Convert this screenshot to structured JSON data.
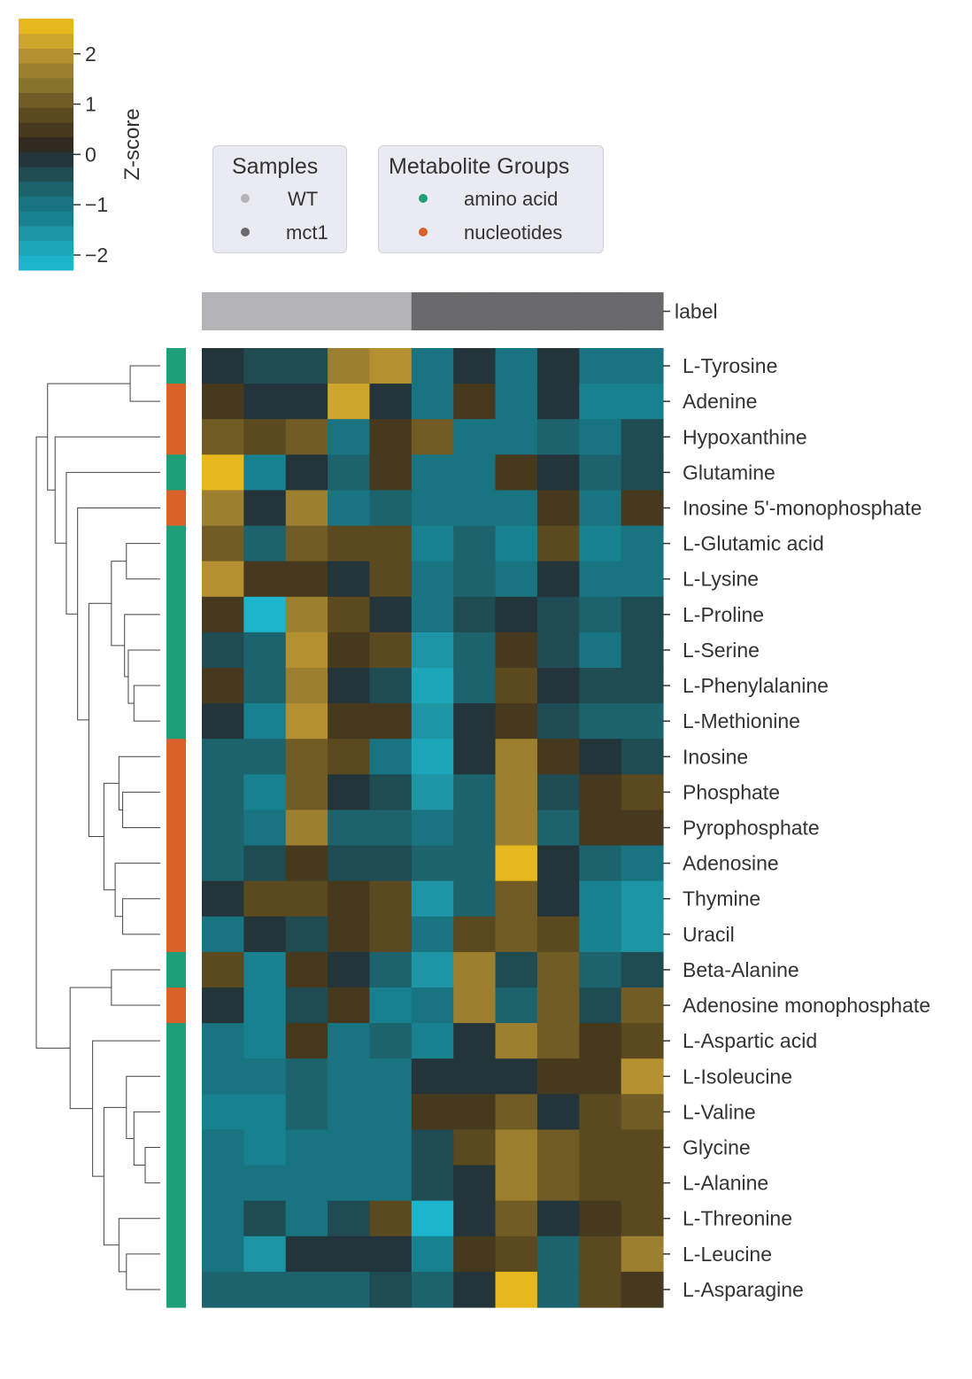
{
  "chart_data": {
    "type": "heatmap",
    "colorbar": {
      "label": "Z-score",
      "ticks": [
        2,
        1,
        0,
        -1,
        -2
      ],
      "tick_labels": [
        "2",
        "1",
        "0",
        "−1",
        "−2"
      ],
      "range": [
        -2.3,
        2.7
      ],
      "colors": [
        "#1cb3cd",
        "#1da5ba",
        "#1e95a4",
        "#17818f",
        "#177480",
        "#1c636d",
        "#1f4b52",
        "#23353b",
        "#312a21",
        "#46391e",
        "#5b4920",
        "#715c25",
        "#89722b",
        "#9c8030",
        "#b49030",
        "#cea62c",
        "#e7b81e"
      ]
    },
    "label_bar": {
      "label": "label",
      "sample_groups": [
        "WT",
        "WT",
        "WT",
        "WT",
        "WT",
        "mct1",
        "mct1",
        "mct1",
        "mct1",
        "mct1",
        "mct1"
      ]
    },
    "legend_samples": {
      "title": "Samples",
      "entries": [
        {
          "label": "WT",
          "color": "#b4b4b6"
        },
        {
          "label": "mct1",
          "color": "#69696b"
        }
      ]
    },
    "legend_groups": {
      "title": "Metabolite Groups",
      "entries": [
        {
          "label": "amino acid",
          "color": "#1f9e7a"
        },
        {
          "label": "nucleotides",
          "color": "#d9622b"
        }
      ]
    },
    "rows": [
      "L-Tyrosine",
      "Adenine",
      "Hypoxanthine",
      "Glutamine",
      "Inosine 5'-monophosphate",
      "L-Glutamic acid",
      "L-Lysine",
      "L-Proline",
      "L-Serine",
      "L-Phenylalanine",
      "L-Methionine",
      "Inosine",
      "Phosphate",
      "Pyrophosphate",
      "Adenosine",
      "Thymine",
      "Uracil",
      "Beta-Alanine",
      "Adenosine monophosphate",
      "L-Aspartic acid",
      "L-Isoleucine",
      "L-Valine",
      "Glycine",
      "L-Alanine",
      "L-Threonine",
      "L-Leucine",
      "L-Asparagine"
    ],
    "row_groups": [
      "amino acid",
      "nucleotides",
      "nucleotides",
      "amino acid",
      "nucleotides",
      "amino acid",
      "amino acid",
      "amino acid",
      "amino acid",
      "amino acid",
      "amino acid",
      "nucleotides",
      "nucleotides",
      "nucleotides",
      "nucleotides",
      "nucleotides",
      "nucleotides",
      "amino acid",
      "nucleotides",
      "amino acid",
      "amino acid",
      "amino acid",
      "amino acid",
      "amino acid",
      "amino acid",
      "amino acid",
      "amino acid"
    ],
    "values": [
      [
        0.0,
        -0.3,
        -0.3,
        1.6,
        2.1,
        -0.9,
        0.0,
        -0.9,
        0.0,
        -0.9,
        -0.9
      ],
      [
        0.5,
        0.0,
        0.0,
        2.2,
        0.0,
        -0.9,
        0.5,
        -0.9,
        0.0,
        -1.2,
        -1.2
      ],
      [
        1.2,
        0.8,
        1.2,
        -0.9,
        0.5,
        1.2,
        -0.9,
        -0.9,
        -0.6,
        -0.9,
        -0.3
      ],
      [
        2.6,
        -1.2,
        0.0,
        -0.6,
        0.5,
        -0.9,
        -0.9,
        0.5,
        0.0,
        -0.6,
        -0.3
      ],
      [
        1.8,
        0.0,
        1.6,
        -0.9,
        -0.6,
        -0.9,
        -0.9,
        -0.9,
        0.5,
        -0.9,
        0.5
      ],
      [
        1.2,
        -0.6,
        1.2,
        0.8,
        0.8,
        -1.2,
        -0.6,
        -1.2,
        0.8,
        -1.2,
        -0.9
      ],
      [
        2.1,
        0.5,
        0.5,
        0.0,
        0.8,
        -0.9,
        -0.6,
        -0.9,
        0.0,
        -0.9,
        -0.9
      ],
      [
        0.5,
        -2.1,
        1.8,
        0.8,
        0.0,
        -0.9,
        -0.3,
        0.0,
        -0.3,
        -0.6,
        -0.3
      ],
      [
        -0.3,
        -0.6,
        2.1,
        0.5,
        0.8,
        -1.5,
        -0.6,
        0.5,
        -0.3,
        -0.9,
        -0.3
      ],
      [
        0.5,
        -0.6,
        1.8,
        0.0,
        -0.3,
        -1.9,
        -0.6,
        0.8,
        0.0,
        -0.3,
        -0.3
      ],
      [
        0.0,
        -1.2,
        2.1,
        0.5,
        0.5,
        -1.5,
        0.0,
        0.5,
        -0.3,
        -0.6,
        -0.6
      ],
      [
        -0.6,
        -0.6,
        1.2,
        0.8,
        -0.9,
        -1.9,
        0.0,
        1.6,
        0.5,
        0.0,
        -0.3
      ],
      [
        -0.6,
        -1.2,
        1.2,
        0.0,
        -0.3,
        -1.5,
        -0.6,
        1.6,
        -0.3,
        0.5,
        0.8
      ],
      [
        -0.6,
        -0.9,
        1.8,
        -0.6,
        -0.6,
        -0.9,
        -0.6,
        1.6,
        -0.6,
        0.5,
        0.5
      ],
      [
        -0.6,
        -0.3,
        0.5,
        -0.3,
        -0.3,
        -0.6,
        -0.6,
        2.6,
        0.0,
        -0.6,
        -0.9
      ],
      [
        0.0,
        0.8,
        0.8,
        0.5,
        0.8,
        -1.5,
        -0.6,
        1.2,
        0.0,
        -1.2,
        -1.5
      ],
      [
        -0.9,
        0.0,
        -0.3,
        0.5,
        0.8,
        -0.9,
        0.8,
        1.2,
        0.8,
        -1.2,
        -1.5
      ],
      [
        0.8,
        -1.2,
        0.5,
        0.0,
        -0.6,
        -1.5,
        1.6,
        -0.3,
        1.2,
        -0.6,
        -0.3
      ],
      [
        0.0,
        -1.2,
        -0.3,
        0.5,
        -1.2,
        -0.9,
        1.6,
        -0.6,
        1.2,
        -0.3,
        1.2
      ],
      [
        -0.9,
        -1.2,
        0.5,
        -0.9,
        -0.6,
        -1.2,
        0.0,
        1.8,
        1.2,
        0.5,
        0.8
      ],
      [
        -0.9,
        -0.9,
        -0.6,
        -0.9,
        -0.9,
        0.0,
        0.0,
        0.0,
        0.5,
        0.5,
        2.1
      ],
      [
        -1.2,
        -1.2,
        -0.6,
        -0.9,
        -0.9,
        0.5,
        0.5,
        1.2,
        0.0,
        0.8,
        1.2
      ],
      [
        -0.9,
        -1.2,
        -0.9,
        -0.9,
        -0.9,
        -0.3,
        0.8,
        1.6,
        1.2,
        0.8,
        0.8
      ],
      [
        -0.9,
        -0.9,
        -0.9,
        -0.9,
        -0.9,
        -0.3,
        0.0,
        1.6,
        1.2,
        0.8,
        0.8
      ],
      [
        -0.9,
        -0.3,
        -0.9,
        -0.3,
        0.8,
        -2.2,
        0.0,
        1.2,
        0.0,
        0.5,
        0.8
      ],
      [
        -0.9,
        -1.5,
        0.0,
        0.0,
        0.0,
        -1.2,
        0.5,
        0.8,
        -0.6,
        0.8,
        1.6
      ],
      [
        -0.6,
        -0.6,
        -0.6,
        -0.6,
        -0.3,
        -0.6,
        0.0,
        2.6,
        -0.6,
        0.8,
        0.5
      ]
    ],
    "dendrogram": {
      "merges": [
        [
          0,
          1
        ],
        [
          5,
          6
        ],
        [
          9,
          10
        ],
        [
          8,
          29
        ],
        [
          7,
          30
        ],
        [
          28,
          31
        ],
        [
          12,
          13
        ],
        [
          11,
          33
        ],
        [
          15,
          16
        ],
        [
          14,
          35
        ],
        [
          34,
          36
        ],
        [
          32,
          37
        ],
        [
          4,
          38
        ],
        [
          3,
          39
        ],
        [
          2,
          40
        ],
        [
          27,
          41
        ],
        [
          22,
          23
        ],
        [
          21,
          43
        ],
        [
          20,
          44
        ],
        [
          25,
          26
        ],
        [
          24,
          46
        ],
        [
          45,
          47
        ],
        [
          17,
          18
        ],
        [
          19,
          48
        ],
        [
          49,
          50
        ],
        [
          42,
          51
        ]
      ],
      "heights": [
        0.8,
        0.9,
        0.7,
        0.85,
        0.95,
        1.3,
        1.0,
        1.1,
        1.0,
        1.2,
        1.5,
        1.9,
        2.2,
        2.5,
        2.8,
        3.0,
        0.4,
        0.7,
        0.9,
        0.9,
        1.1,
        1.5,
        1.3,
        1.8,
        2.4,
        3.3
      ]
    }
  }
}
